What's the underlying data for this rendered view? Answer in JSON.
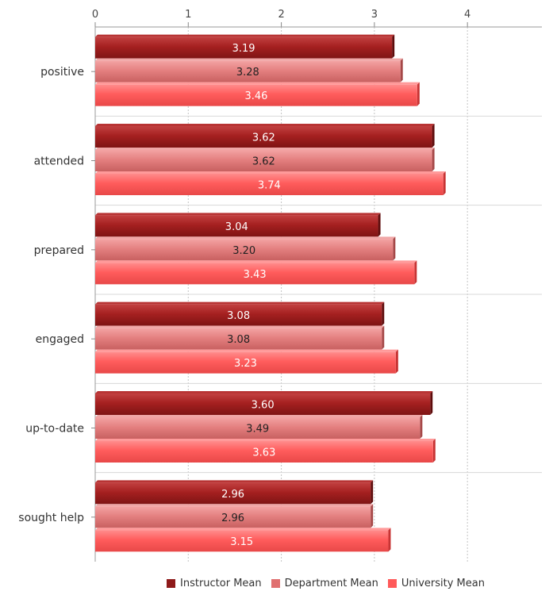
{
  "chart_data": {
    "type": "bar",
    "orientation": "horizontal",
    "categories": [
      "positive",
      "attended",
      "prepared",
      "engaged",
      "up-to-date",
      "sought help"
    ],
    "series": [
      {
        "name": "Instructor Mean",
        "values": [
          3.19,
          3.62,
          3.04,
          3.08,
          3.6,
          2.96
        ],
        "color": "#9b1c1c"
      },
      {
        "name": "Department Mean",
        "values": [
          3.28,
          3.62,
          3.2,
          3.08,
          3.49,
          2.96
        ],
        "color": "#e07070"
      },
      {
        "name": "University Mean",
        "values": [
          3.46,
          3.74,
          3.43,
          3.23,
          3.63,
          3.15
        ],
        "color": "#ff5a5a"
      }
    ],
    "xlim": [
      0,
      4.8
    ],
    "ticks": [
      "0",
      "1",
      "2",
      "3",
      "4"
    ],
    "grid": true,
    "legend_position": "bottom-right"
  }
}
